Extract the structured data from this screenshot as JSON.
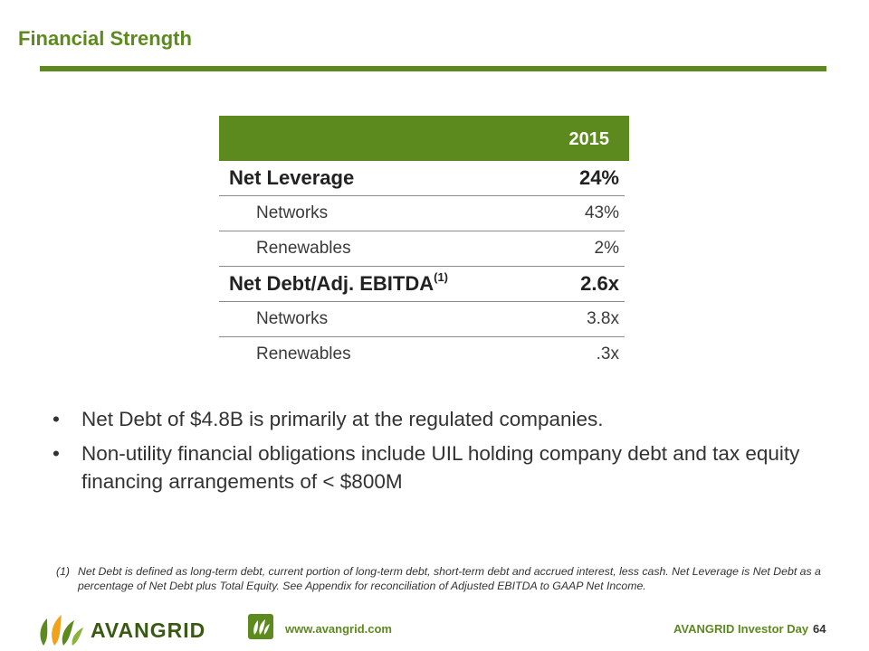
{
  "page": {
    "title": "Financial Strength"
  },
  "table": {
    "header": "2015",
    "rows": [
      {
        "label": "Net Leverage",
        "value": "24%"
      },
      {
        "label": "Networks",
        "value": "43%"
      },
      {
        "label": "Renewables",
        "value": "2%"
      },
      {
        "label": "Net Debt/Adj. EBITDA",
        "sup": "(1)",
        "value": "2.6x"
      },
      {
        "label": "Networks",
        "value": "3.8x"
      },
      {
        "label": "Renewables",
        "value": ".3x"
      }
    ]
  },
  "bullets": [
    "Net Debt of $4.8B is primarily at the regulated companies.",
    "Non-utility financial obligations include UIL holding company debt and tax equity financing arrangements of < $800M"
  ],
  "bullet_marker": "•",
  "footnote": {
    "number": "(1)",
    "text": "Net Debt is defined as long-term debt, current portion of long-term debt, short-term debt and accrued interest, less cash.  Net Leverage is Net Debt as a percentage of Net Debt plus Total Equity.  See Appendix for reconciliation of Adjusted EBITDA to GAAP Net Income."
  },
  "footer": {
    "brand": "AVANGRID",
    "url": "www.avangrid.com",
    "event": "AVANGRID Investor Day",
    "page_number": "64"
  },
  "colors": {
    "accent": "#5d8a1e",
    "brand_dark": "#3a5a14",
    "logo_orange": "#f2a21a"
  }
}
